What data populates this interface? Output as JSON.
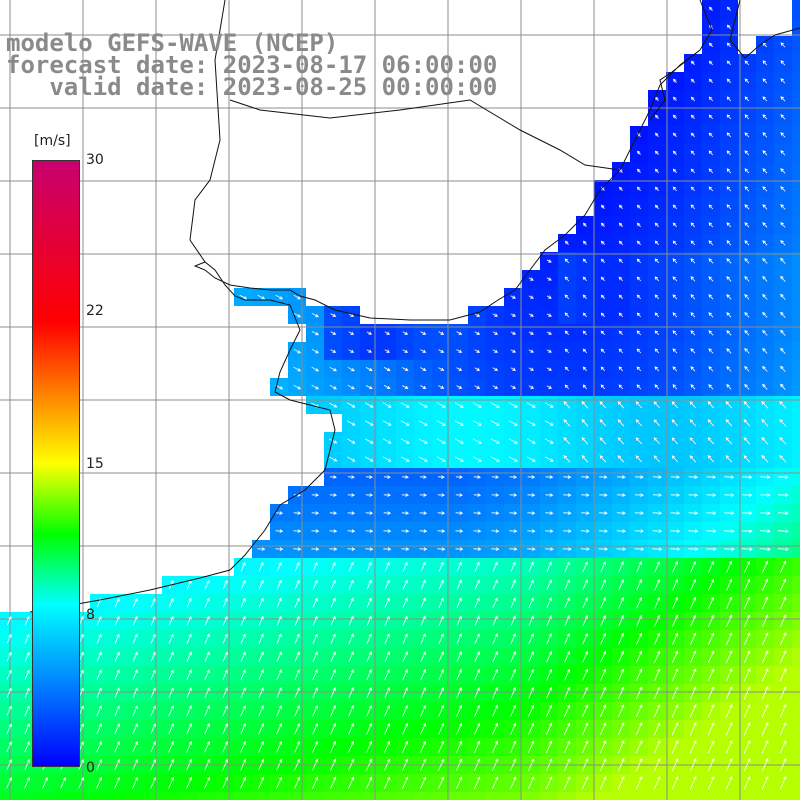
{
  "header": {
    "line1": "modelo GEFS-WAVE (NCEP)",
    "line2": "forecast date: 2023-08-17 06:00:00",
    "line3": "   valid date: 2023-08-25 00:00:00"
  },
  "colorbar": {
    "unit": "[m/s]",
    "ticks": [
      "30",
      "22",
      "15",
      "8",
      "0"
    ],
    "range": [
      0,
      30
    ],
    "stops": [
      {
        "value": 0,
        "color": "#0000ff"
      },
      {
        "value": 8,
        "color": "#00ffff"
      },
      {
        "value": 11.5,
        "color": "#00ff00"
      },
      {
        "value": 15,
        "color": "#ffff00"
      },
      {
        "value": 22,
        "color": "#ff0000"
      },
      {
        "value": 30,
        "color": "#c8006e"
      }
    ]
  },
  "map": {
    "field": "wind speed",
    "land_color": "#ffffff",
    "grid_color": "#8c8c8c",
    "arrow_color": "#ffffff"
  }
}
